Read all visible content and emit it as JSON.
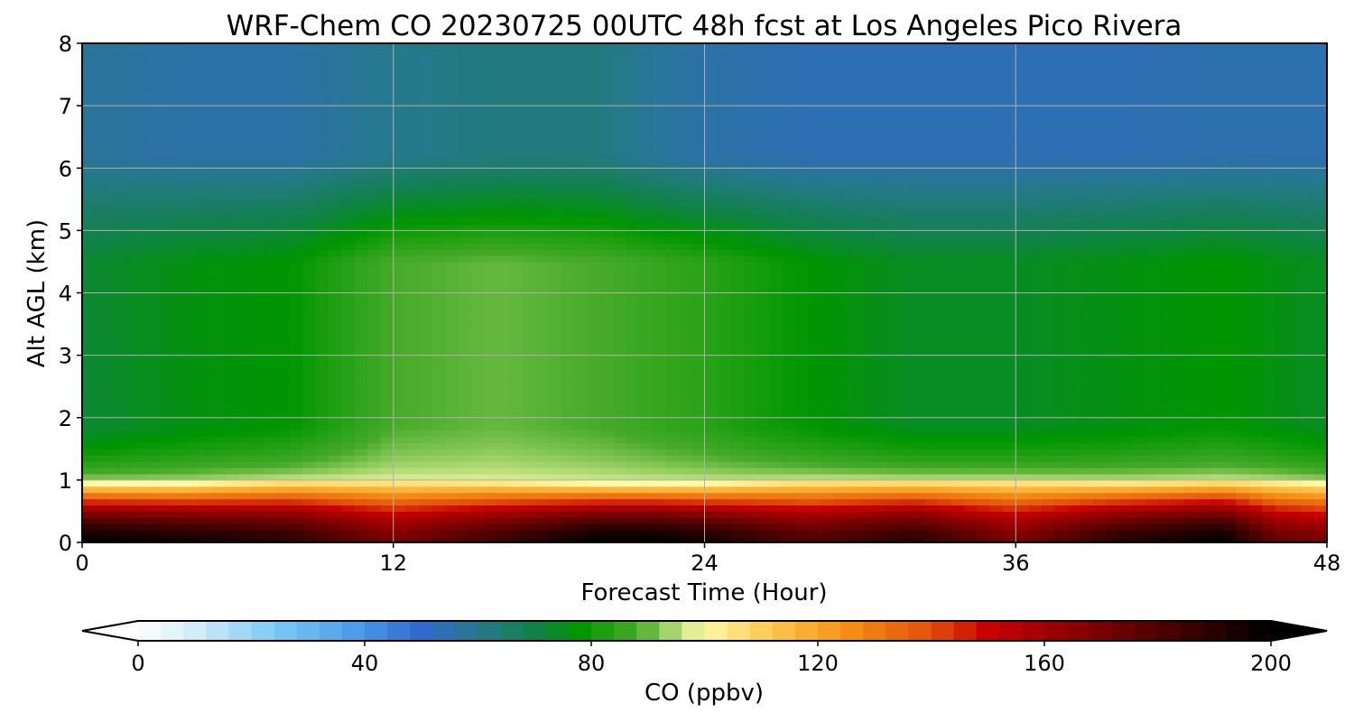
{
  "chart_data": {
    "type": "heatmap",
    "title": "WRF-Chem CO  20230725 00UTC 48h fcst at Los Angeles Pico Rivera",
    "xlabel": "Forecast Time (Hour)",
    "ylabel": "Alt AGL (km)",
    "xlim": [
      0,
      48
    ],
    "ylim": [
      0,
      8
    ],
    "x_ticks": [
      "0",
      "12",
      "24",
      "36",
      "48"
    ],
    "y_ticks": [
      "0",
      "1",
      "2",
      "3",
      "4",
      "5",
      "6",
      "7",
      "8"
    ],
    "grid": true,
    "colorbar": {
      "label": "CO  (ppbv)",
      "ticks": [
        "0",
        "40",
        "80",
        "120",
        "160",
        "200"
      ],
      "range": [
        0,
        200
      ],
      "extend": "both",
      "placement": "bottom"
    },
    "field_description": {
      "x_hours": [
        0,
        4,
        8,
        12,
        16,
        20,
        22,
        24,
        28,
        32,
        36,
        40,
        44,
        46,
        48
      ],
      "surface_layer_top_km": [
        0.95,
        0.95,
        1.0,
        1.0,
        0.98,
        0.95,
        0.95,
        0.95,
        1.0,
        1.0,
        1.0,
        0.98,
        1.0,
        0.98,
        0.95
      ],
      "near_surface_max_co_ppbv": [
        200,
        195,
        190,
        170,
        185,
        200,
        200,
        195,
        180,
        190,
        170,
        190,
        200,
        175,
        170
      ],
      "mid_level_co_ppbv_2_to_4km": [
        72,
        76,
        78,
        88,
        90,
        88,
        86,
        84,
        78,
        74,
        74,
        76,
        78,
        76,
        74
      ],
      "upper_level_co_ppbv_6_to_8km": [
        58,
        56,
        56,
        60,
        62,
        62,
        58,
        56,
        54,
        54,
        54,
        54,
        55,
        55,
        55
      ]
    }
  }
}
